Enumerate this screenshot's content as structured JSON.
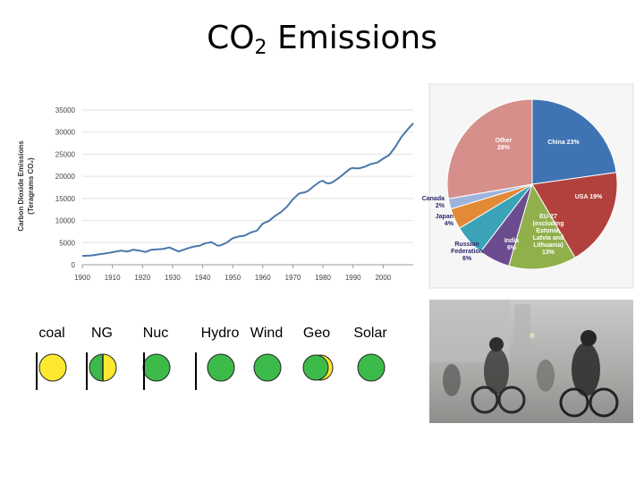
{
  "title": {
    "main": "CO",
    "sub": "2",
    "rest": " Emissions"
  },
  "chart_data": [
    {
      "type": "line",
      "ylabel_line1": "Carbon Dioxide Emissions",
      "ylabel_line2": "(Teragrams CO₂)",
      "xlim": [
        1900,
        2010
      ],
      "ylim": [
        0,
        35000
      ],
      "x_ticks": [
        "1900",
        "1910",
        "1920",
        "1930",
        "1940",
        "1950",
        "1960",
        "1970",
        "1980",
        "1990",
        "2000"
      ],
      "y_ticks": [
        "0",
        "5000",
        "10000",
        "15000",
        "20000",
        "25000",
        "30000",
        "35000"
      ],
      "line_color": "#4a78a8",
      "series": [
        {
          "x": [
            1900,
            1903,
            1906,
            1909,
            1912,
            1913,
            1915,
            1917,
            1919,
            1921,
            1923,
            1925,
            1927,
            1929,
            1930,
            1932,
            1935,
            1937,
            1939,
            1941,
            1943,
            1945,
            1946,
            1948,
            1950,
            1952,
            1954,
            1956,
            1958,
            1960,
            1962,
            1964,
            1966,
            1968,
            1970,
            1972,
            1974,
            1975,
            1977,
            1979,
            1980,
            1981,
            1982,
            1983,
            1985,
            1987,
            1989,
            1990,
            1991,
            1992,
            1994,
            1996,
            1998,
            2000,
            2002,
            2004,
            2006,
            2008,
            2010
          ],
          "y": [
            2000,
            2100,
            2400,
            2700,
            3100,
            3200,
            3000,
            3400,
            3200,
            2900,
            3400,
            3500,
            3600,
            3900,
            3600,
            3000,
            3700,
            4100,
            4300,
            4900,
            5100,
            4300,
            4400,
            5000,
            6000,
            6400,
            6600,
            7300,
            7700,
            9300,
            9900,
            11000,
            11900,
            13100,
            14800,
            16100,
            16400,
            16700,
            17800,
            18800,
            19000,
            18500,
            18400,
            18600,
            19500,
            20600,
            21700,
            21900,
            21800,
            21800,
            22200,
            22800,
            23100,
            24000,
            24800,
            26600,
            28800,
            30500,
            32000
          ]
        }
      ]
    },
    {
      "type": "pie",
      "slices": [
        {
          "label": "China",
          "value": 23,
          "text": "China 23%",
          "color": "#3f73b3"
        },
        {
          "label": "USA",
          "value": 19,
          "text": "USA 19%",
          "color": "#b2413d"
        },
        {
          "label": "EU-27 (excluding Estonia, Latvia and Lithuania)",
          "value": 13,
          "text": "EU-27 (excluding Estonia, Latvia and Lithuania) 13%",
          "color": "#8fb04a"
        },
        {
          "label": "India",
          "value": 6,
          "text": "India 6%",
          "color": "#6b4d8f"
        },
        {
          "label": "Russian Federation",
          "value": 6,
          "text": "Russian Federation 6%",
          "color": "#3aa3b8"
        },
        {
          "label": "Japan",
          "value": 4,
          "text": "Japan 4%",
          "color": "#e38a37"
        },
        {
          "label": "Canada",
          "value": 2,
          "text": "Canada 2%",
          "color": "#9db4dc"
        },
        {
          "label": "Other",
          "value": 28,
          "text": "Other 28%",
          "color": "#d68f8b"
        }
      ]
    }
  ],
  "sources": [
    {
      "label": "coal",
      "fill": "yellow"
    },
    {
      "label": "NG",
      "fill": "half-green-yellow"
    },
    {
      "label": "Nuc",
      "fill": "green"
    },
    {
      "label": "Hydro",
      "fill": "green"
    },
    {
      "label": "Wind",
      "fill": "green"
    },
    {
      "label": "Geo",
      "fill": "green-yellow-crescent"
    },
    {
      "label": "Solar",
      "fill": "green"
    }
  ],
  "colors": {
    "green": "#3dbb4a",
    "yellow": "#fde92f"
  }
}
